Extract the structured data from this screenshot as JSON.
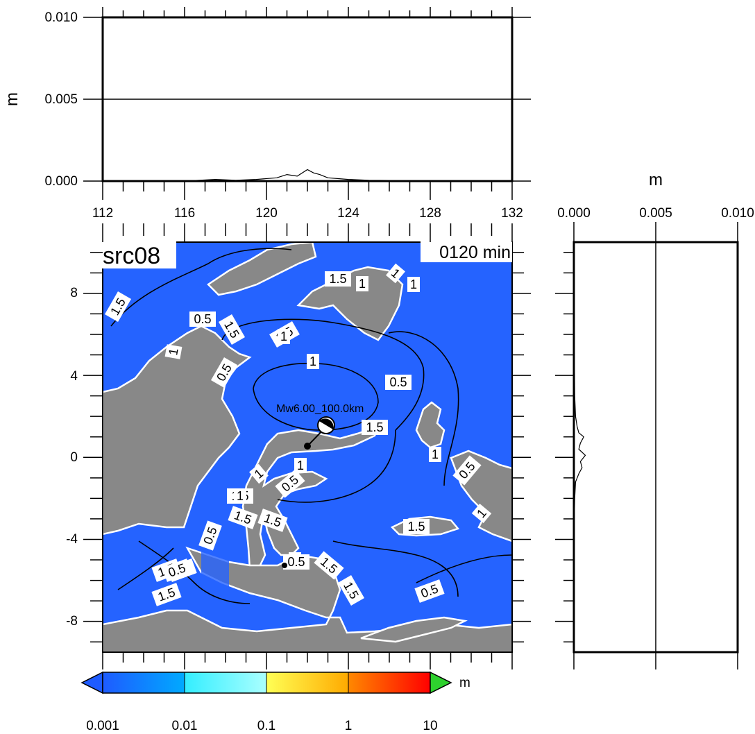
{
  "top_panel": {
    "ylabel": "m",
    "y_ticks": [
      "0.000",
      "0.005",
      "0.010"
    ],
    "x_ticks": [
      "112",
      "116",
      "120",
      "124",
      "128",
      "132"
    ],
    "xlim": [
      112,
      132
    ],
    "ylim": [
      0,
      0.01
    ]
  },
  "right_panel": {
    "xlabel": "m",
    "x_ticks": [
      "0.000",
      "0.005",
      "0.010"
    ],
    "xlim": [
      0,
      0.01
    ]
  },
  "map": {
    "source_label": "src08",
    "time_label": "0120 min",
    "y_ticks": [
      "8",
      "4",
      "0",
      "-4",
      "-8"
    ],
    "ylim": [
      -9.5,
      10.5
    ],
    "epicenter_label": "Mw6.00_100.0km",
    "epicenter": {
      "lon": 122,
      "lat": 0.5
    },
    "contour_labels": [
      "1.5",
      "0.5",
      "1.5",
      "1",
      "1.5",
      "0.5",
      "1.5",
      "1",
      "1",
      "1",
      "1",
      "0.5",
      "1.5",
      "1",
      "0.5",
      "1.5",
      "1",
      "0.5",
      "1.5",
      "1.5",
      "1",
      "1.5",
      "1",
      "1.5",
      "0.5",
      "1.5",
      "1",
      "1.5",
      "0.5",
      "1",
      "0.5",
      "1",
      "0.5",
      "1.5",
      "0.5",
      "0.5"
    ]
  },
  "colorbar": {
    "unit": "m",
    "ticks": [
      "0.001",
      "0.01",
      "0.1",
      "1",
      "10"
    ],
    "colors": {
      "ocean": "#2563ff",
      "land": "#888888",
      "under": "#1e5bff",
      "over": "#2ed12e"
    }
  },
  "chart_data": {
    "type": "line",
    "top_profile": {
      "x": [
        112,
        116,
        117.5,
        118.5,
        119.5,
        120.5,
        121,
        121.5,
        122,
        122.3,
        122.6,
        123,
        124,
        125,
        127,
        129,
        132
      ],
      "y": [
        0,
        0,
        0.0001,
        5e-05,
        0.0001,
        0.0002,
        0.0004,
        0.0003,
        0.0007,
        0.0005,
        0.0004,
        0.0002,
        0.0001,
        5e-05,
        3e-05,
        0,
        0
      ]
    },
    "right_profile": {
      "lat": [
        10.5,
        6,
        3,
        2,
        1.5,
        1.2,
        1.0,
        0.7,
        0.4,
        0.1,
        -0.2,
        -0.5,
        -0.8,
        -1.2,
        -2,
        -4,
        -9.5
      ],
      "value": [
        0,
        2e-05,
        5e-05,
        0.0001,
        0.0002,
        0.0003,
        0.0006,
        0.0004,
        0.0003,
        0.0007,
        0.0004,
        0.0005,
        0.0003,
        0.0001,
        5e-05,
        0,
        0
      ]
    }
  }
}
